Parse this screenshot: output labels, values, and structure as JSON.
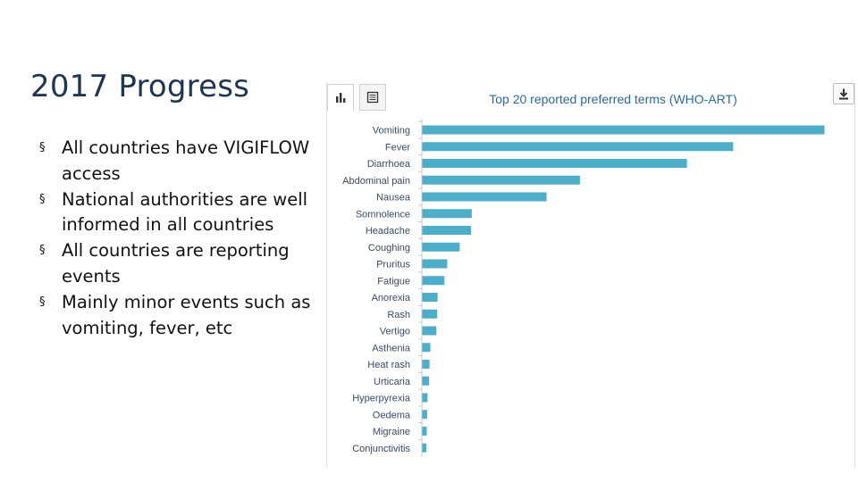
{
  "slide": {
    "title": "2017 Progress",
    "bullets": [
      "All countries have VIGIFLOW access",
      "National authorities are well informed in all countries",
      "All countries are reporting events",
      "Mainly minor events such as vomiting, fever, etc"
    ],
    "bullet_symbol": "§"
  },
  "panel": {
    "tabs": [
      {
        "icon": "bar-chart-icon",
        "active": true
      },
      {
        "icon": "table-icon",
        "active": false
      }
    ],
    "download_icon": "download-icon"
  },
  "chart_data": {
    "type": "bar",
    "orientation": "horizontal",
    "title": "Top 20 reported preferred terms (WHO-ART)",
    "bar_color": "#4eaec9",
    "xlim": [
      0,
      100
    ],
    "grid": false,
    "legend": "none",
    "categories": [
      "Vomiting",
      "Fever",
      "Diarrhoea",
      "Abdominal pain",
      "Nausea",
      "Somnolence",
      "Headache",
      "Coughing",
      "Pruritus",
      "Fatigue",
      "Anorexia",
      "Rash",
      "Vertigo",
      "Asthenia",
      "Heat rash",
      "Urticaria",
      "Hyperpyrexia",
      "Oedema",
      "Migraine",
      "Conjunctivitis"
    ],
    "values": [
      100,
      77.3,
      65.8,
      39.2,
      30.9,
      12.3,
      12.1,
      9.3,
      6.2,
      5.5,
      3.8,
      3.7,
      3.5,
      2.0,
      1.8,
      1.7,
      1.3,
      1.2,
      1.1,
      1.0
    ]
  }
}
